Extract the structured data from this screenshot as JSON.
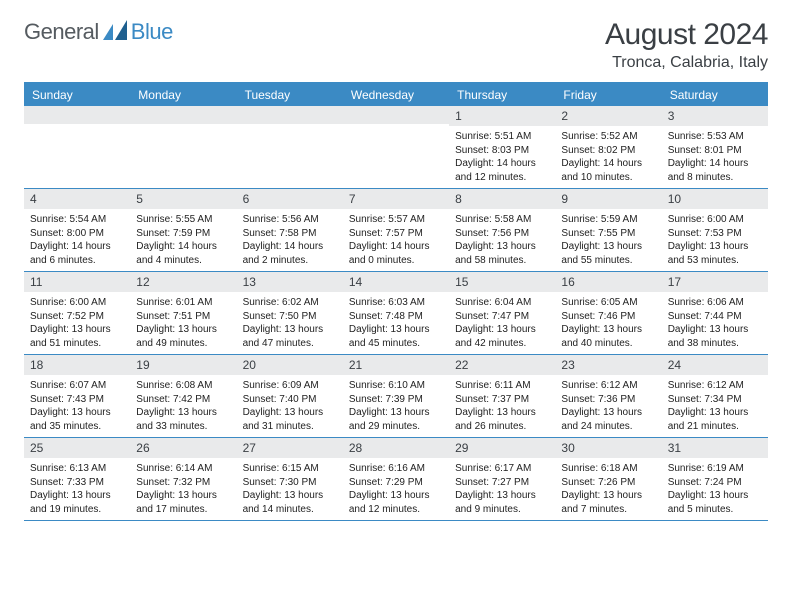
{
  "brand": {
    "part1": "General",
    "part2": "Blue"
  },
  "title": "August 2024",
  "location": "Tronca, Calabria, Italy",
  "colors": {
    "accent": "#3b8ac4",
    "text": "#3a3f44",
    "daynum_bg": "#e9eaeb",
    "page_bg": "#ffffff"
  },
  "weekdays": [
    "Sunday",
    "Monday",
    "Tuesday",
    "Wednesday",
    "Thursday",
    "Friday",
    "Saturday"
  ],
  "weeks": [
    [
      {
        "n": "",
        "sr": "",
        "ss": "",
        "dl": ""
      },
      {
        "n": "",
        "sr": "",
        "ss": "",
        "dl": ""
      },
      {
        "n": "",
        "sr": "",
        "ss": "",
        "dl": ""
      },
      {
        "n": "",
        "sr": "",
        "ss": "",
        "dl": ""
      },
      {
        "n": "1",
        "sr": "Sunrise: 5:51 AM",
        "ss": "Sunset: 8:03 PM",
        "dl": "Daylight: 14 hours and 12 minutes."
      },
      {
        "n": "2",
        "sr": "Sunrise: 5:52 AM",
        "ss": "Sunset: 8:02 PM",
        "dl": "Daylight: 14 hours and 10 minutes."
      },
      {
        "n": "3",
        "sr": "Sunrise: 5:53 AM",
        "ss": "Sunset: 8:01 PM",
        "dl": "Daylight: 14 hours and 8 minutes."
      }
    ],
    [
      {
        "n": "4",
        "sr": "Sunrise: 5:54 AM",
        "ss": "Sunset: 8:00 PM",
        "dl": "Daylight: 14 hours and 6 minutes."
      },
      {
        "n": "5",
        "sr": "Sunrise: 5:55 AM",
        "ss": "Sunset: 7:59 PM",
        "dl": "Daylight: 14 hours and 4 minutes."
      },
      {
        "n": "6",
        "sr": "Sunrise: 5:56 AM",
        "ss": "Sunset: 7:58 PM",
        "dl": "Daylight: 14 hours and 2 minutes."
      },
      {
        "n": "7",
        "sr": "Sunrise: 5:57 AM",
        "ss": "Sunset: 7:57 PM",
        "dl": "Daylight: 14 hours and 0 minutes."
      },
      {
        "n": "8",
        "sr": "Sunrise: 5:58 AM",
        "ss": "Sunset: 7:56 PM",
        "dl": "Daylight: 13 hours and 58 minutes."
      },
      {
        "n": "9",
        "sr": "Sunrise: 5:59 AM",
        "ss": "Sunset: 7:55 PM",
        "dl": "Daylight: 13 hours and 55 minutes."
      },
      {
        "n": "10",
        "sr": "Sunrise: 6:00 AM",
        "ss": "Sunset: 7:53 PM",
        "dl": "Daylight: 13 hours and 53 minutes."
      }
    ],
    [
      {
        "n": "11",
        "sr": "Sunrise: 6:00 AM",
        "ss": "Sunset: 7:52 PM",
        "dl": "Daylight: 13 hours and 51 minutes."
      },
      {
        "n": "12",
        "sr": "Sunrise: 6:01 AM",
        "ss": "Sunset: 7:51 PM",
        "dl": "Daylight: 13 hours and 49 minutes."
      },
      {
        "n": "13",
        "sr": "Sunrise: 6:02 AM",
        "ss": "Sunset: 7:50 PM",
        "dl": "Daylight: 13 hours and 47 minutes."
      },
      {
        "n": "14",
        "sr": "Sunrise: 6:03 AM",
        "ss": "Sunset: 7:48 PM",
        "dl": "Daylight: 13 hours and 45 minutes."
      },
      {
        "n": "15",
        "sr": "Sunrise: 6:04 AM",
        "ss": "Sunset: 7:47 PM",
        "dl": "Daylight: 13 hours and 42 minutes."
      },
      {
        "n": "16",
        "sr": "Sunrise: 6:05 AM",
        "ss": "Sunset: 7:46 PM",
        "dl": "Daylight: 13 hours and 40 minutes."
      },
      {
        "n": "17",
        "sr": "Sunrise: 6:06 AM",
        "ss": "Sunset: 7:44 PM",
        "dl": "Daylight: 13 hours and 38 minutes."
      }
    ],
    [
      {
        "n": "18",
        "sr": "Sunrise: 6:07 AM",
        "ss": "Sunset: 7:43 PM",
        "dl": "Daylight: 13 hours and 35 minutes."
      },
      {
        "n": "19",
        "sr": "Sunrise: 6:08 AM",
        "ss": "Sunset: 7:42 PM",
        "dl": "Daylight: 13 hours and 33 minutes."
      },
      {
        "n": "20",
        "sr": "Sunrise: 6:09 AM",
        "ss": "Sunset: 7:40 PM",
        "dl": "Daylight: 13 hours and 31 minutes."
      },
      {
        "n": "21",
        "sr": "Sunrise: 6:10 AM",
        "ss": "Sunset: 7:39 PM",
        "dl": "Daylight: 13 hours and 29 minutes."
      },
      {
        "n": "22",
        "sr": "Sunrise: 6:11 AM",
        "ss": "Sunset: 7:37 PM",
        "dl": "Daylight: 13 hours and 26 minutes."
      },
      {
        "n": "23",
        "sr": "Sunrise: 6:12 AM",
        "ss": "Sunset: 7:36 PM",
        "dl": "Daylight: 13 hours and 24 minutes."
      },
      {
        "n": "24",
        "sr": "Sunrise: 6:12 AM",
        "ss": "Sunset: 7:34 PM",
        "dl": "Daylight: 13 hours and 21 minutes."
      }
    ],
    [
      {
        "n": "25",
        "sr": "Sunrise: 6:13 AM",
        "ss": "Sunset: 7:33 PM",
        "dl": "Daylight: 13 hours and 19 minutes."
      },
      {
        "n": "26",
        "sr": "Sunrise: 6:14 AM",
        "ss": "Sunset: 7:32 PM",
        "dl": "Daylight: 13 hours and 17 minutes."
      },
      {
        "n": "27",
        "sr": "Sunrise: 6:15 AM",
        "ss": "Sunset: 7:30 PM",
        "dl": "Daylight: 13 hours and 14 minutes."
      },
      {
        "n": "28",
        "sr": "Sunrise: 6:16 AM",
        "ss": "Sunset: 7:29 PM",
        "dl": "Daylight: 13 hours and 12 minutes."
      },
      {
        "n": "29",
        "sr": "Sunrise: 6:17 AM",
        "ss": "Sunset: 7:27 PM",
        "dl": "Daylight: 13 hours and 9 minutes."
      },
      {
        "n": "30",
        "sr": "Sunrise: 6:18 AM",
        "ss": "Sunset: 7:26 PM",
        "dl": "Daylight: 13 hours and 7 minutes."
      },
      {
        "n": "31",
        "sr": "Sunrise: 6:19 AM",
        "ss": "Sunset: 7:24 PM",
        "dl": "Daylight: 13 hours and 5 minutes."
      }
    ]
  ]
}
